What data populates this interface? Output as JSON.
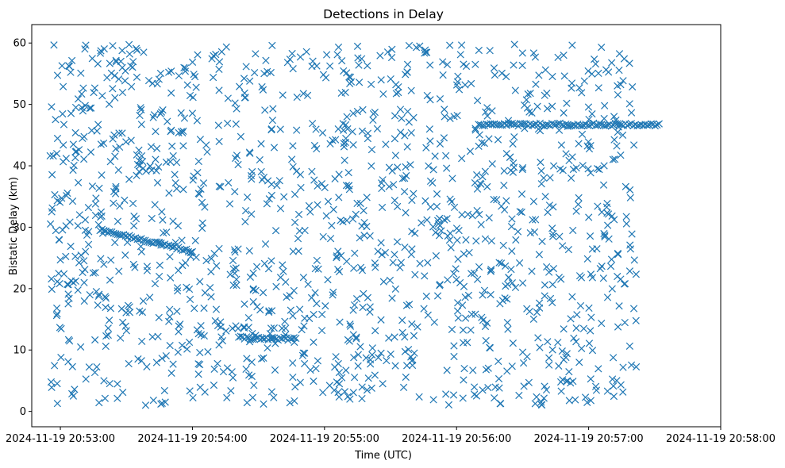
{
  "chart_data": {
    "type": "scatter",
    "title": "Detections in Delay",
    "xlabel": "Time (UTC)",
    "ylabel": "Bistatic Delay (km)",
    "x_type": "datetime",
    "xlim": [
      "2024-11-19 20:52:47",
      "2024-11-19 20:58:00"
    ],
    "ylim": [
      -2.5,
      63
    ],
    "x_ticks": [
      "2024-11-19 20:53:00",
      "2024-11-19 20:54:00",
      "2024-11-19 20:55:00",
      "2024-11-19 20:56:00",
      "2024-11-19 20:57:00",
      "2024-11-19 20:58:00"
    ],
    "y_ticks": [
      0,
      10,
      20,
      30,
      40,
      50,
      60
    ],
    "marker": "x",
    "color": "#1f77b4",
    "grid": false,
    "legend": false,
    "tracks": [
      {
        "start": {
          "x": "2024-11-19 20:53:18",
          "y": 29.6
        },
        "end": {
          "x": "2024-11-19 20:54:00",
          "y": 26.0
        }
      },
      {
        "start": {
          "x": "2024-11-19 20:54:21",
          "y": 12.0
        },
        "end": {
          "x": "2024-11-19 20:54:47",
          "y": 11.8
        }
      },
      {
        "start": {
          "x": "2024-11-19 20:56:10",
          "y": 46.7
        },
        "end": {
          "x": "2024-11-19 20:57:32",
          "y": 46.7
        }
      }
    ],
    "scattered_points": "approximately 1400 random detections uniformly spread over 0–60 km between 20:52:47 and 20:58:00"
  }
}
